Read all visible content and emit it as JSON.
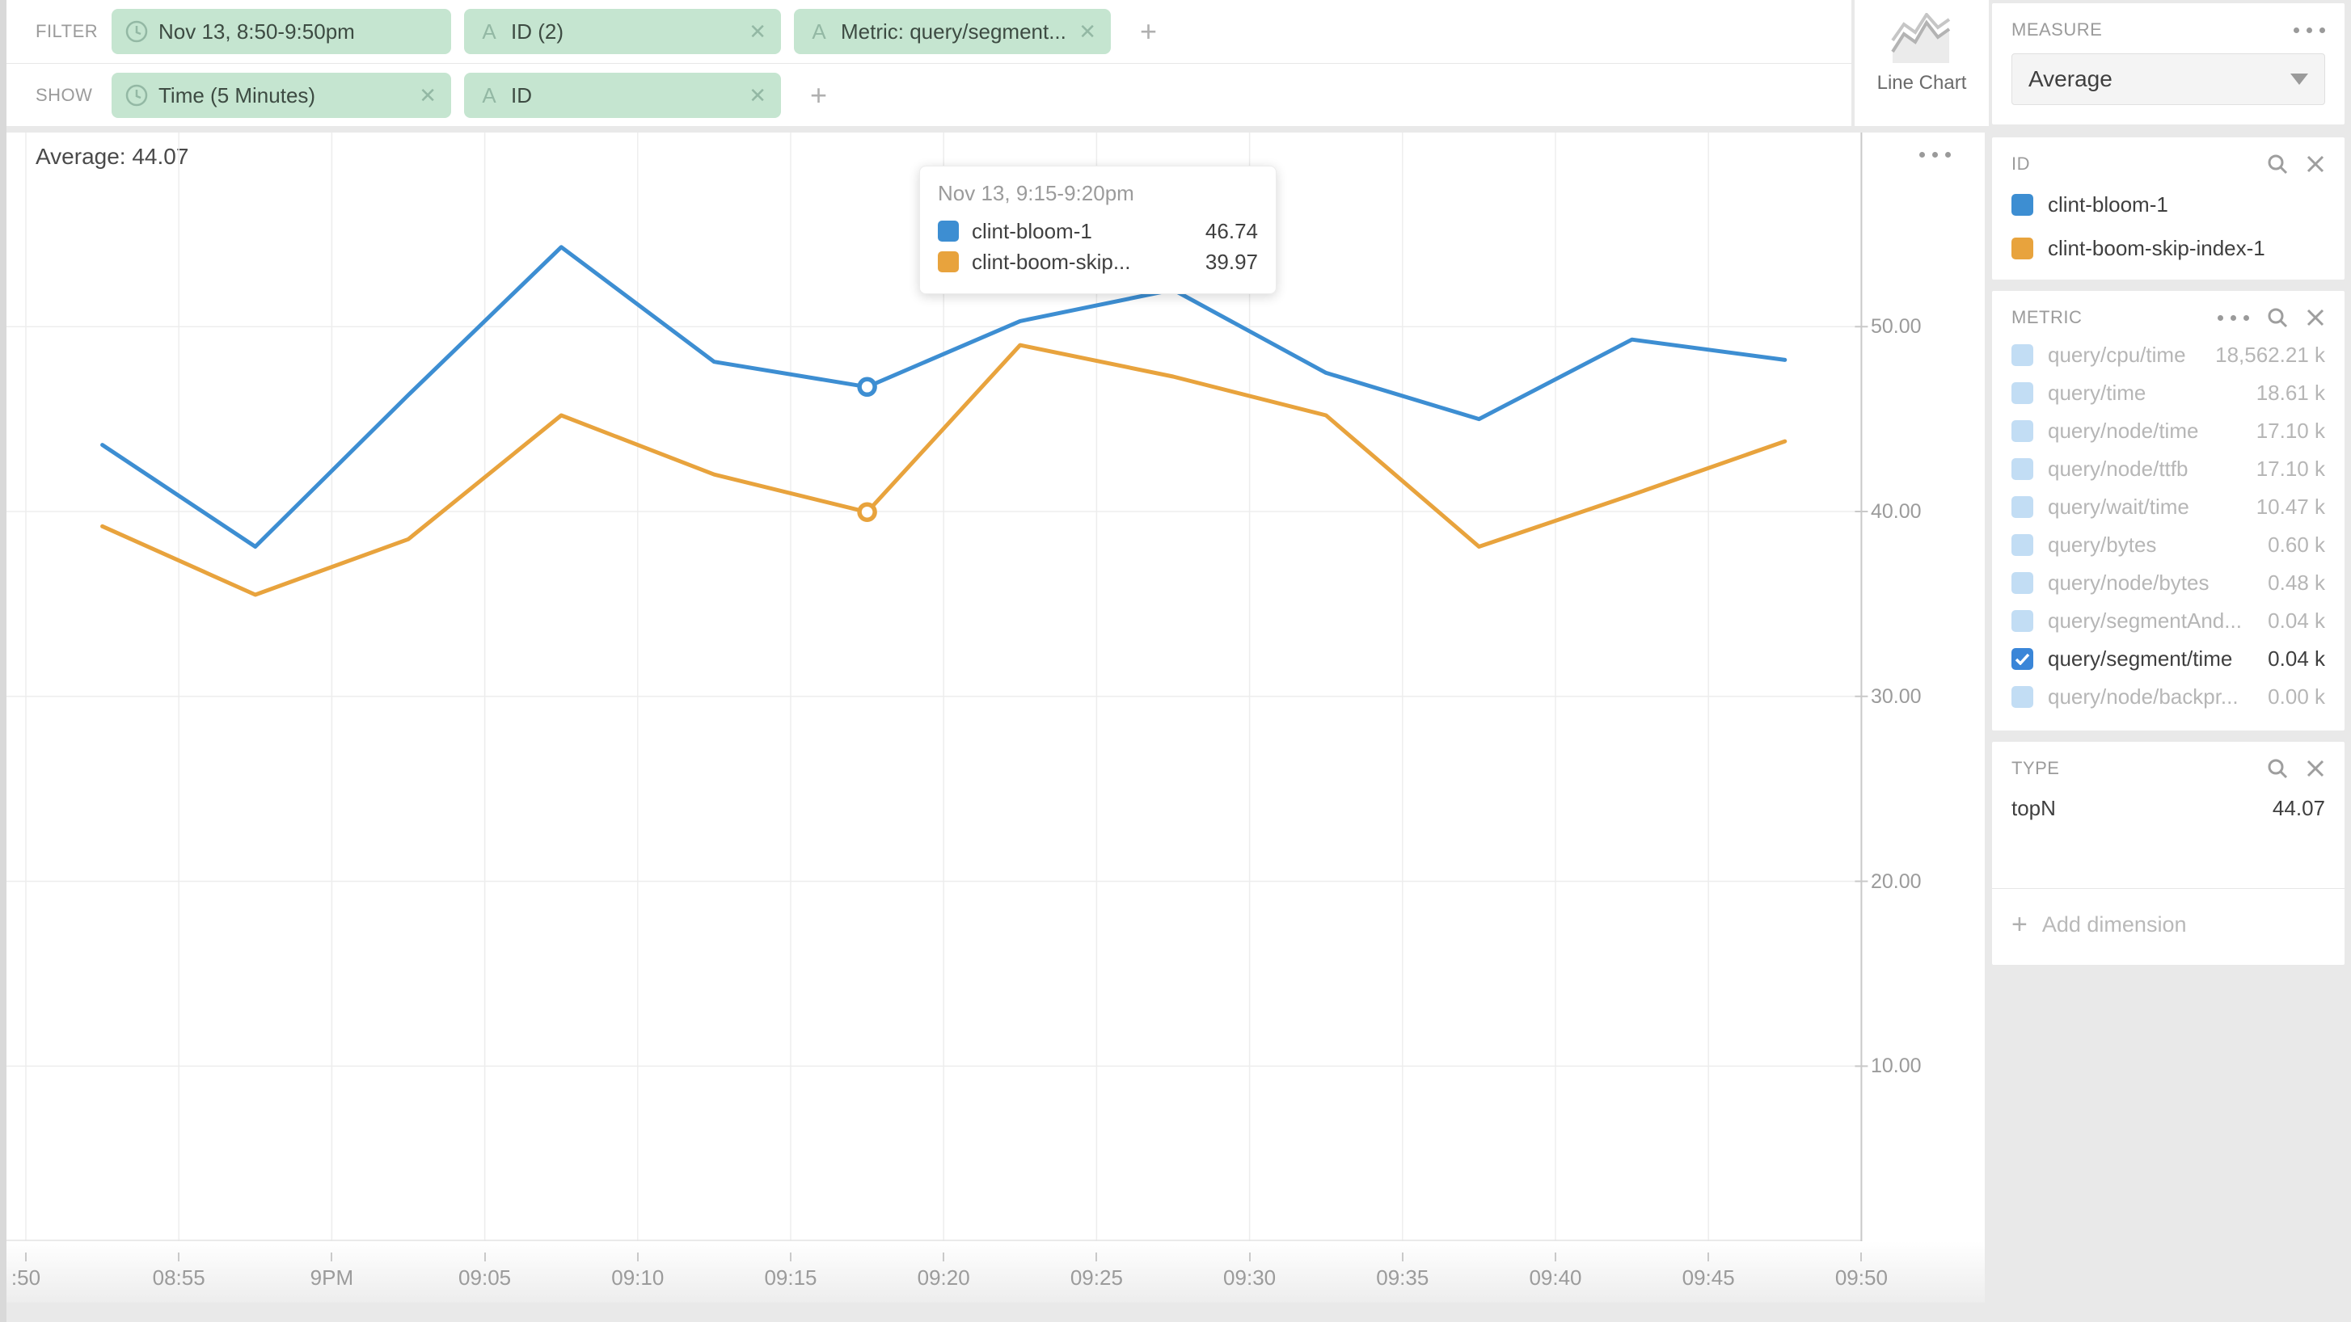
{
  "filter_bar": {
    "filter_label": "FILTER",
    "show_label": "SHOW",
    "add_label": "+",
    "filter_pills": [
      {
        "icon": "clock-icon",
        "label": "Nov 13, 8:50-9:50pm",
        "removable": false,
        "wide": true
      },
      {
        "icon": "attribute-icon",
        "label": "ID (2)",
        "removable": true,
        "wide": false
      },
      {
        "icon": "attribute-icon",
        "label": "Metric: query/segment...",
        "removable": true,
        "wide": false
      }
    ],
    "show_pills": [
      {
        "icon": "clock-icon",
        "label": "Time (5 Minutes)",
        "removable": true,
        "wide": true
      },
      {
        "icon": "attribute-icon",
        "label": "ID",
        "removable": true,
        "wide": false
      }
    ]
  },
  "vis_selector": {
    "label": "Line Chart"
  },
  "measure_panel": {
    "title": "MEASURE",
    "selected": "Average"
  },
  "id_panel": {
    "title": "ID",
    "items": [
      {
        "name": "clint-bloom-1",
        "color": "#3d8ed2"
      },
      {
        "name": "clint-boom-skip-index-1",
        "color": "#e8a33d"
      }
    ]
  },
  "metric_panel": {
    "title": "METRIC",
    "items": [
      {
        "label": "query/cpu/time",
        "value": "18,562.21 k",
        "checked": false
      },
      {
        "label": "query/time",
        "value": "18.61 k",
        "checked": false
      },
      {
        "label": "query/node/time",
        "value": "17.10 k",
        "checked": false
      },
      {
        "label": "query/node/ttfb",
        "value": "17.10 k",
        "checked": false
      },
      {
        "label": "query/wait/time",
        "value": "10.47 k",
        "checked": false
      },
      {
        "label": "query/bytes",
        "value": "0.60 k",
        "checked": false
      },
      {
        "label": "query/node/bytes",
        "value": "0.48 k",
        "checked": false
      },
      {
        "label": "query/segmentAnd...",
        "value": "0.04 k",
        "checked": false
      },
      {
        "label": "query/segment/time",
        "value": "0.04 k",
        "checked": true
      },
      {
        "label": "query/node/backpr...",
        "value": "0.00 k",
        "checked": false
      }
    ]
  },
  "type_panel": {
    "title": "TYPE",
    "rows": [
      {
        "label": "topN",
        "value": "44.07"
      }
    ]
  },
  "add_dimension": {
    "label": "Add dimension"
  },
  "chart": {
    "average_label": "Average: 44.07",
    "tooltip": {
      "title": "Nov 13, 9:15-9:20pm",
      "rows": [
        {
          "name": "clint-bloom-1",
          "value": "46.74",
          "color": "#3d8ed2"
        },
        {
          "name": "clint-boom-skip...",
          "value": "39.97",
          "color": "#e8a33d"
        }
      ]
    }
  },
  "chart_data": {
    "type": "line",
    "title": "Average of query/segment/time split by ID over time",
    "x": [
      "20:50",
      "20:55",
      "21:00",
      "21:05",
      "21:10",
      "21:15",
      "21:20",
      "21:25",
      "21:30",
      "21:35",
      "21:40",
      "21:45"
    ],
    "series": [
      {
        "name": "clint-bloom-1",
        "color": "#3d8ed2",
        "values": [
          43.6,
          38.1,
          46.3,
          54.3,
          48.1,
          46.74,
          50.3,
          52.0,
          47.5,
          45.0,
          49.3,
          48.2
        ]
      },
      {
        "name": "clint-boom-skip-index-1",
        "color": "#e8a33d",
        "values": [
          39.2,
          35.5,
          38.5,
          45.2,
          42.0,
          39.97,
          49.0,
          47.3,
          45.2,
          38.1,
          40.9,
          43.8
        ]
      }
    ],
    "highlight_index": 5,
    "x_tick_labels": [
      ":50",
      "08:55",
      "9PM",
      "09:05",
      "09:10",
      "09:15",
      "09:20",
      "09:25",
      "09:30",
      "09:35",
      "09:40",
      "09:45",
      "09:50"
    ],
    "y_ticks": [
      50,
      40,
      30,
      20,
      10
    ],
    "y_tick_labels": [
      "50.00",
      "40.00",
      "30.00",
      "20.00",
      "10.00"
    ],
    "ylim": [
      0.53,
      60.5
    ],
    "grid": true,
    "legend_position": "right-panel"
  }
}
